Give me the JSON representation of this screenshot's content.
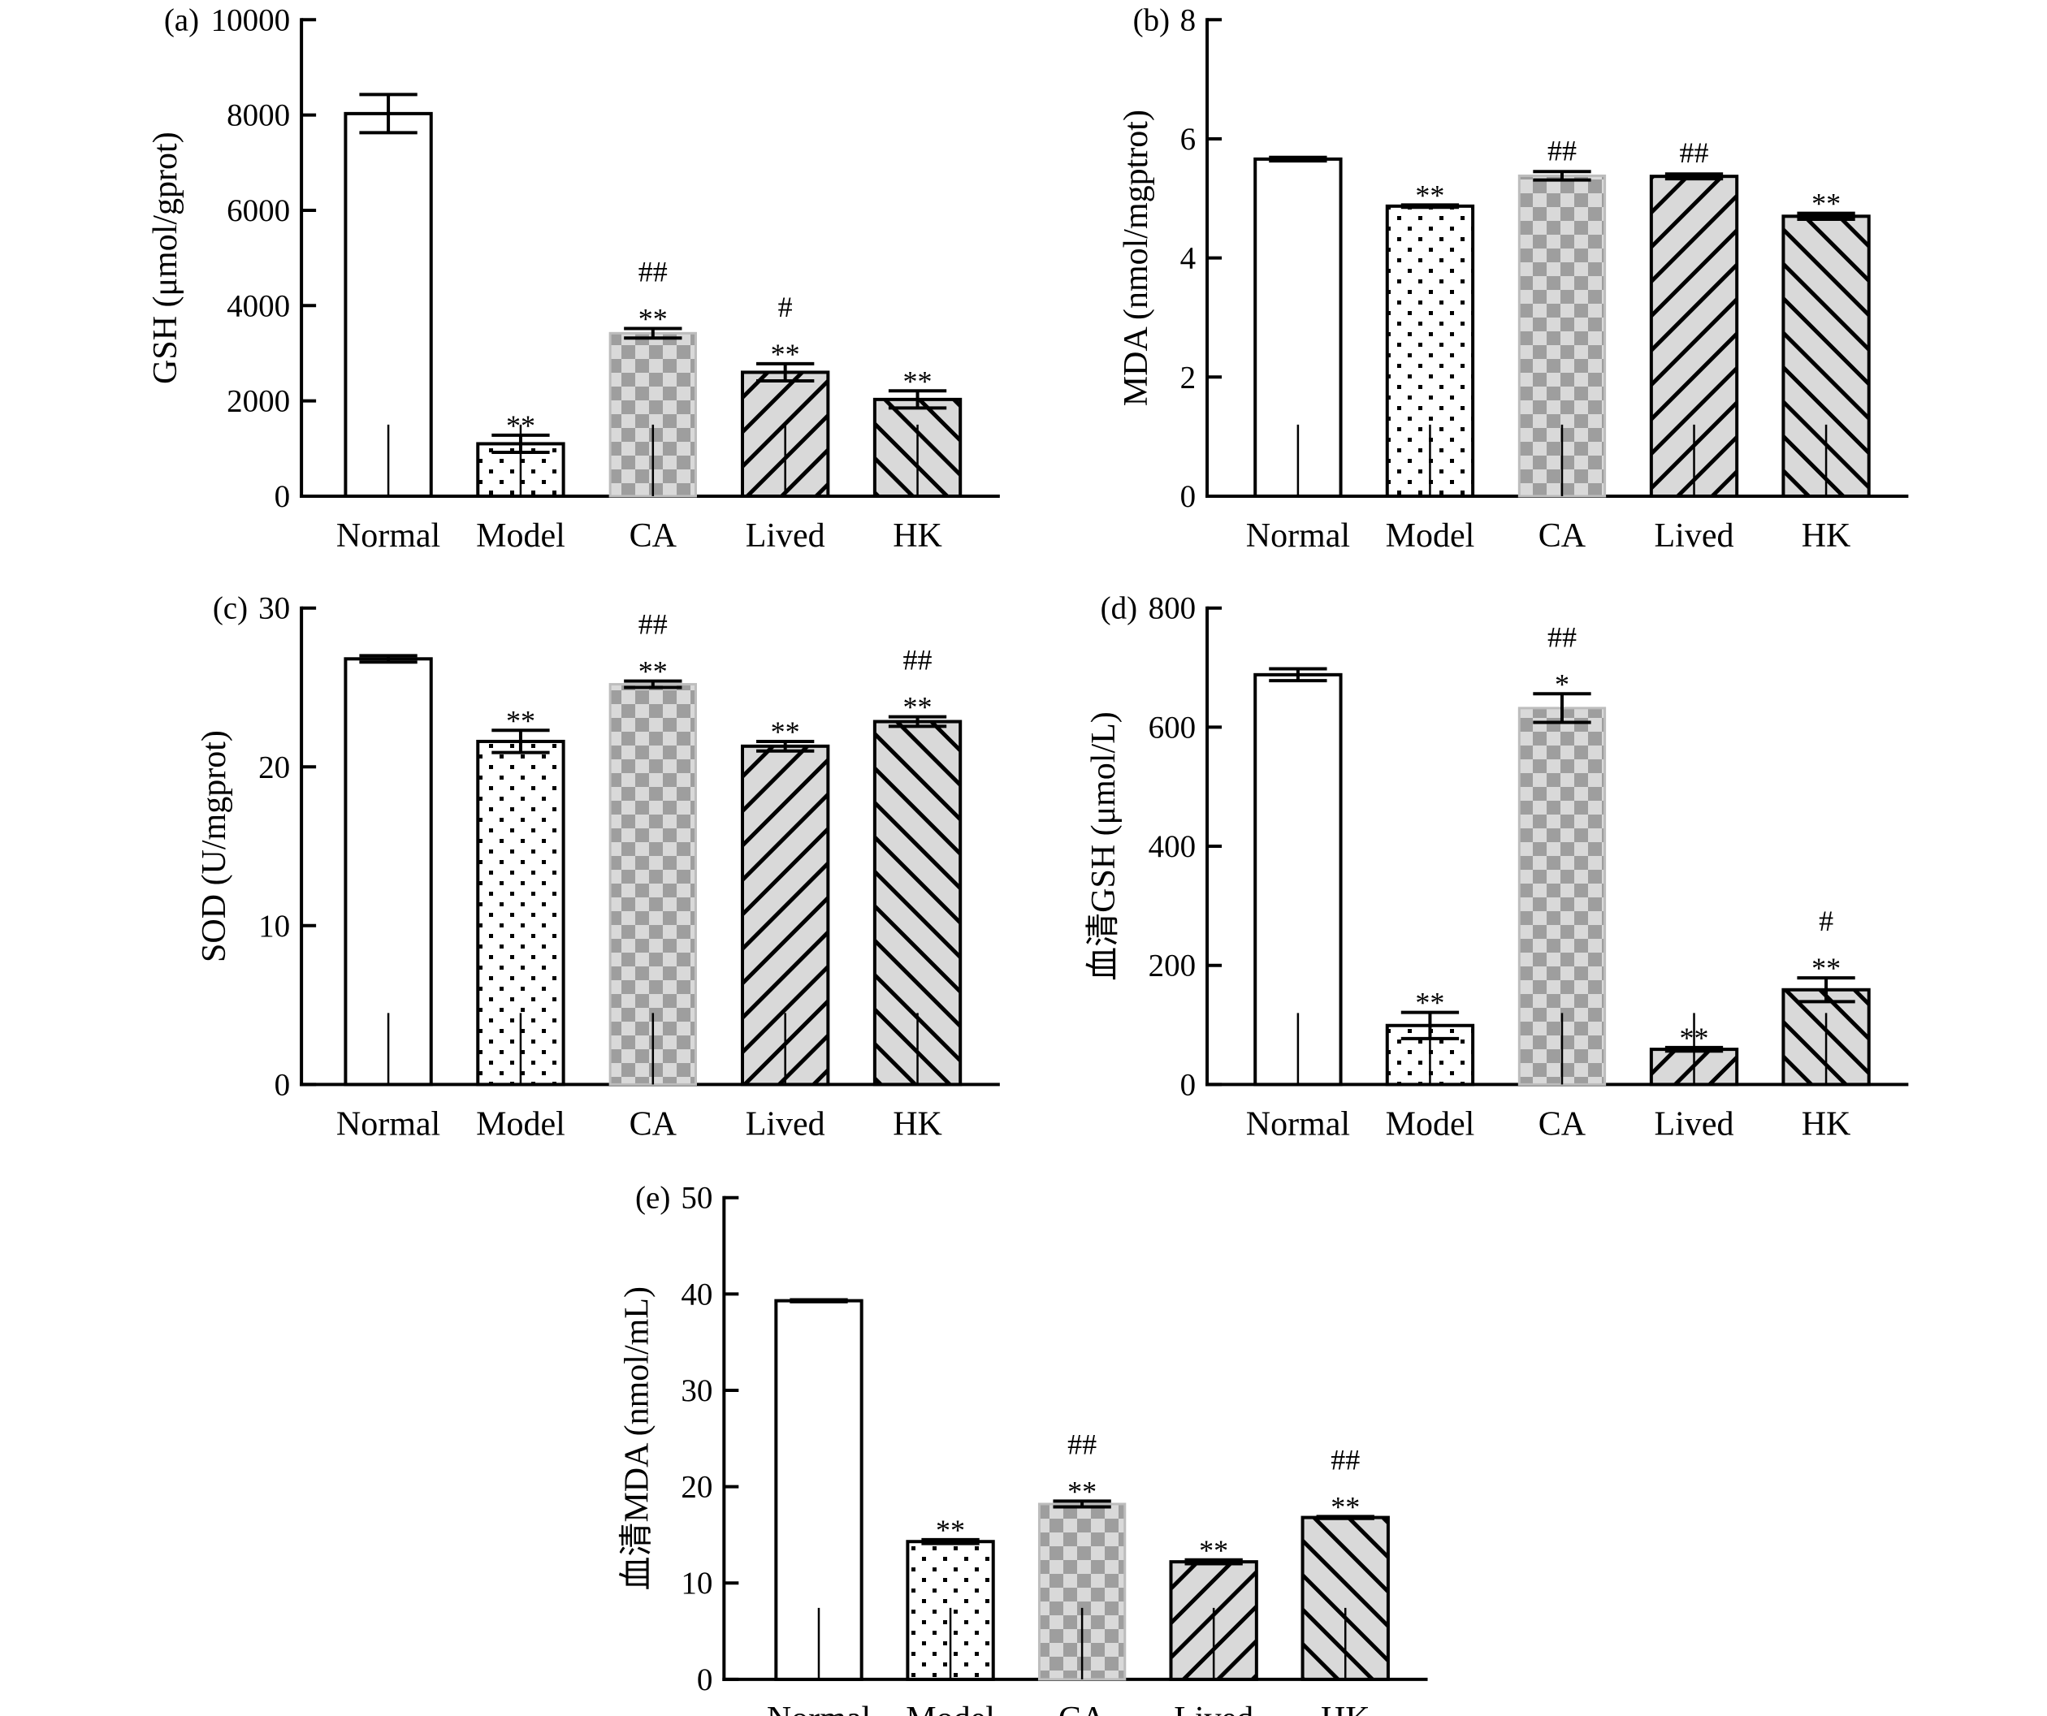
{
  "chart_data": [
    {
      "type": "bar",
      "panel_label": "(a)",
      "ylabel": "GSH (μmol/gprot)",
      "categories": [
        "Normal",
        "Model",
        "CA",
        "Lived",
        "HK"
      ],
      "values": [
        8030,
        1100,
        3420,
        2600,
        2030
      ],
      "errors": [
        400,
        180,
        100,
        180,
        180
      ],
      "significance": [
        [
          "",
          ""
        ],
        [
          "**",
          ""
        ],
        [
          "**",
          "##"
        ],
        [
          "**",
          "#"
        ],
        [
          "**",
          ""
        ]
      ],
      "ylim": [
        0,
        10000
      ],
      "yticks": [
        0,
        2000,
        4000,
        6000,
        8000,
        10000
      ],
      "grid": false
    },
    {
      "type": "bar",
      "panel_label": "(b)",
      "ylabel": "MDA (nmol/mgptrot)",
      "categories": [
        "Normal",
        "Model",
        "CA",
        "Lived",
        "HK"
      ],
      "values": [
        5.66,
        4.87,
        5.38,
        5.37,
        4.7
      ],
      "errors": [
        0.03,
        0.02,
        0.07,
        0.04,
        0.05
      ],
      "significance": [
        [
          "",
          ""
        ],
        [
          "**",
          ""
        ],
        [
          "",
          "##"
        ],
        [
          "",
          "##"
        ],
        [
          "**",
          ""
        ]
      ],
      "ylim": [
        0,
        8
      ],
      "yticks": [
        0,
        2,
        4,
        6,
        8
      ],
      "grid": false
    },
    {
      "type": "bar",
      "panel_label": "(c)",
      "ylabel": "SOD (U/mgprot)",
      "categories": [
        "Normal",
        "Model",
        "CA",
        "Lived",
        "HK"
      ],
      "values": [
        26.8,
        21.6,
        25.2,
        21.3,
        22.85
      ],
      "errors": [
        0.2,
        0.7,
        0.2,
        0.3,
        0.3
      ],
      "significance": [
        [
          "",
          ""
        ],
        [
          "**",
          ""
        ],
        [
          "**",
          "##"
        ],
        [
          "**",
          ""
        ],
        [
          "**",
          "##"
        ]
      ],
      "ylim": [
        0,
        30
      ],
      "yticks": [
        0,
        10,
        20,
        30
      ],
      "grid": false
    },
    {
      "type": "bar",
      "panel_label": "(d)",
      "ylabel": "血清GSH (μmol/L)",
      "categories": [
        "Normal",
        "Model",
        "CA",
        "Lived",
        "HK"
      ],
      "values": [
        688,
        99,
        632,
        59,
        159
      ],
      "errors": [
        10,
        22,
        24,
        3,
        20
      ],
      "significance": [
        [
          "",
          ""
        ],
        [
          "**",
          ""
        ],
        [
          "*",
          "##"
        ],
        [
          "**",
          ""
        ],
        [
          "**",
          "#"
        ]
      ],
      "ylim": [
        0,
        800
      ],
      "yticks": [
        0,
        200,
        400,
        600,
        800
      ],
      "grid": false
    },
    {
      "type": "bar",
      "panel_label": "(e)",
      "ylabel": "血清MDA (nmol/mL)",
      "categories": [
        "Normal",
        "Model",
        "CA",
        "Lived",
        "HK"
      ],
      "values": [
        39.3,
        14.3,
        18.2,
        12.2,
        16.8
      ],
      "errors": [
        0.1,
        0.2,
        0.3,
        0.2,
        0.1
      ],
      "significance": [
        [
          "",
          ""
        ],
        [
          "**",
          ""
        ],
        [
          "**",
          "##"
        ],
        [
          "**",
          ""
        ],
        [
          "**",
          "##"
        ]
      ],
      "ylim": [
        0,
        50
      ],
      "yticks": [
        0,
        10,
        20,
        30,
        40,
        50
      ],
      "grid": false
    }
  ],
  "bar_styles": [
    "white",
    "dots",
    "checker",
    "hatch-forward",
    "hatch-back"
  ],
  "colors": {
    "axis": "#000000",
    "checker_dark": "#9e9e9e",
    "checker_light": "#d9d9d9",
    "hatch_bg": "#d9d9d9"
  }
}
